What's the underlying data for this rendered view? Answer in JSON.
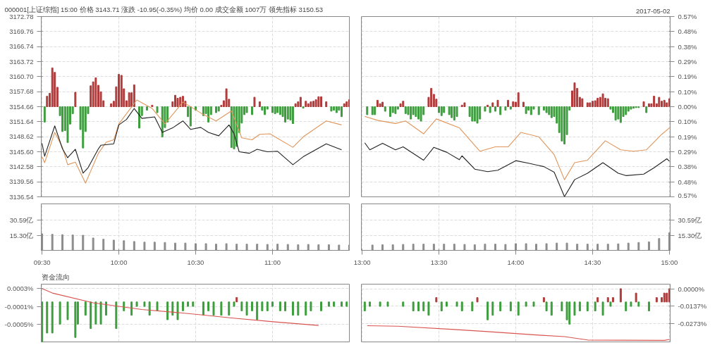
{
  "chart_data": [
    {
      "type": "line",
      "title": "000001[上证综指] 15:00 价格 3143.71 涨跌 -10.95(-0.35%) 均价 0.00 成交金额 1007万 领先指标 3150.53",
      "xlim": [
        9.495,
        11.505
      ],
      "xticks": [
        {
          "value": 9.5,
          "label": null
        },
        {
          "value": 10,
          "label": null
        },
        {
          "value": 10.5,
          "label": null
        },
        {
          "value": 11,
          "label": null
        }
      ],
      "ylim": [
        3136.54,
        3172.78
      ],
      "yticks": [
        3136.54,
        3139.56,
        3142.58,
        {
          "value": 3145.6,
          "label": "3145.60"
        },
        3148.62,
        3151.64,
        3154.66,
        3157.68,
        {
          "value": 3160.7,
          "label": "3160.70"
        },
        3163.72,
        3166.74,
        3169.76,
        3172.78
      ],
      "grid": true,
      "tick_labels": "y",
      "line_style": "solid",
      "series": [
        {
          "type": "bar",
          "color": "#b03a3a",
          "x": [
            9.533,
            9.55,
            9.567,
            9.583,
            9.6,
            9.717,
            9.817,
            9.833,
            9.85,
            9.867,
            9.883,
            9.9,
            9.95,
            9.967,
            9.983,
            10,
            10.017,
            10.033,
            10.05,
            10.067,
            10.083,
            10.1,
            10.217,
            10.35,
            10.367,
            10.383,
            10.4,
            10.417,
            10.433,
            10.667,
            10.683,
            10.7,
            10.717,
            10.883,
            10.917,
            11.15,
            11.167,
            11.183,
            11.217,
            11.233,
            11.25,
            11.267,
            11.283,
            11.3,
            11.317,
            11.35,
            11.467,
            11.483,
            11.5
          ],
          "values": [
            2.1,
            2.7,
            7.8,
            6.9,
            3.9,
            2.9,
            4.2,
            5.0,
            5.8,
            4.3,
            3.0,
            1.2,
            0.6,
            1.1,
            4.0,
            6.5,
            6.3,
            3.6,
            1.2,
            2.8,
            2.8,
            4.4,
            0.3,
            1.0,
            2.3,
            1.7,
            1.9,
            2.1,
            1.1,
            0.3,
            1.2,
            3.6,
            1.5,
            1.9,
            1.0,
            0.6,
            1.0,
            1.9,
            1.1,
            0.6,
            1.0,
            1.1,
            1.4,
            2.0,
            2.0,
            1.0,
            0.6,
            1.0,
            1.4
          ],
          "base": [
            3154.66,
            3154.66,
            3154.66,
            3154.66,
            3154.66,
            3154.66,
            3154.66,
            3154.66,
            3154.66,
            3154.66,
            3154.66,
            3154.66,
            3154.66,
            3154.66,
            3154.66,
            3154.66,
            3154.66,
            3154.66,
            3154.66,
            3154.66,
            3154.66,
            3154.66,
            3154.66,
            3154.66,
            3154.66,
            3154.66,
            3154.66,
            3154.66,
            3154.66,
            3154.66,
            3154.66,
            3154.66,
            3154.66,
            3154.66,
            3154.66,
            3154.66,
            3154.66,
            3154.66,
            3154.66,
            3154.66,
            3154.66,
            3154.66,
            3154.66,
            3154.66,
            3154.66,
            3154.66,
            3154.66,
            3154.66,
            3154.66
          ]
        },
        {
          "type": "bar",
          "color": "#3c9d3c",
          "x": [
            9.517,
            9.617,
            9.633,
            9.65,
            9.667,
            9.683,
            9.7,
            9.75,
            9.767,
            9.783,
            9.8,
            10.133,
            10.15,
            10.183,
            10.25,
            10.283,
            10.3,
            10.317,
            10.45,
            10.467,
            10.5,
            10.55,
            10.567,
            10.583,
            10.6,
            10.633,
            10.65,
            10.733,
            10.75,
            10.767,
            10.783,
            10.8,
            10.817,
            10.833,
            10.867,
            10.933,
            10.95,
            10.967,
            11,
            11.017,
            11.033,
            11.05,
            11.067,
            11.083,
            11.1,
            11.117,
            11.133,
            11.2,
            11.383,
            11.4,
            11.417,
            11.433,
            11.45
          ],
          "values": [
            -3.1,
            -1.8,
            -5.0,
            -4.8,
            -7.2,
            -3.5,
            -1.4,
            -4.6,
            -8.3,
            -5.0,
            -1.4,
            -4.3,
            -1.8,
            -0.7,
            -1.2,
            -6.1,
            -4.2,
            -3.1,
            -2.0,
            -3.9,
            -0.7,
            -1.8,
            -1.4,
            -3.1,
            -1.6,
            -1.2,
            -0.9,
            -8.2,
            -8.5,
            -8.0,
            -5.2,
            -3.3,
            -1.6,
            -1.2,
            -1.6,
            -0.7,
            -1.6,
            -0.5,
            -1.2,
            -1.4,
            -1.2,
            -1.6,
            -2.0,
            -3.1,
            -2.5,
            -2.7,
            -3.4,
            -0.3,
            -0.9,
            -0.7,
            -1.2,
            -0.7,
            -2.0
          ],
          "base": [
            3154.66,
            3154.66,
            3154.66,
            3154.66,
            3154.66,
            3154.66,
            3154.66,
            3154.66,
            3154.66,
            3154.66,
            3154.66,
            3154.66,
            3154.66,
            3154.66,
            3154.66,
            3154.66,
            3154.66,
            3154.66,
            3154.66,
            3154.66,
            3154.66,
            3154.66,
            3154.66,
            3154.66,
            3154.66,
            3154.66,
            3154.66,
            3154.66,
            3154.66,
            3154.66,
            3154.66,
            3154.66,
            3154.66,
            3154.66,
            3154.66,
            3154.66,
            3154.66,
            3154.66,
            3154.66,
            3154.66,
            3154.66,
            3154.66,
            3154.66,
            3154.66,
            3154.66,
            3154.66,
            3154.66,
            3154.66,
            3154.66,
            3154.66,
            3154.66,
            3154.66,
            3154.66
          ]
        },
        {
          "type": "line",
          "color": "#e0955a",
          "x": [
            9.5,
            9.517,
            9.583,
            9.633,
            9.667,
            9.717,
            9.783,
            9.867,
            9.917,
            9.967,
            10,
            10.117,
            10.217,
            10.3,
            10.417,
            10.533,
            10.633,
            10.733,
            10.8,
            10.867,
            10.917,
            10.983,
            11.133,
            11.2,
            11.35,
            11.45
          ],
          "values": [
            3144.6,
            3143.4,
            3149.5,
            3146.5,
            3143.0,
            3143.5,
            3139.3,
            3145.3,
            3147.5,
            3148.0,
            3151.2,
            3156.0,
            3154.3,
            3151.2,
            3155.6,
            3153.4,
            3151.8,
            3153.8,
            3148.4,
            3148.0,
            3149.1,
            3149.2,
            3146.5,
            3148.6,
            3151.8,
            3151.0
          ]
        },
        {
          "type": "line",
          "color": "#222222",
          "x": [
            9.5,
            9.517,
            9.583,
            9.633,
            9.667,
            9.717,
            9.767,
            9.8,
            9.867,
            9.883,
            9.967,
            10,
            10.05,
            10.1,
            10.15,
            10.233,
            10.283,
            10.35,
            10.417,
            10.467,
            10.533,
            10.583,
            10.65,
            10.717,
            10.75,
            10.783,
            10.85,
            10.9,
            10.967,
            11.033,
            11.133,
            11.2,
            11.35,
            11.45
          ],
          "values": [
            3147.3,
            3144.7,
            3150.8,
            3146.2,
            3144.4,
            3146.1,
            3141.3,
            3142.4,
            3146.2,
            3146.9,
            3147.2,
            3151.0,
            3152.1,
            3154.3,
            3152.3,
            3152.6,
            3149.5,
            3150.4,
            3151.8,
            3150.1,
            3150.5,
            3149.5,
            3148.8,
            3151.0,
            3149.2,
            3145.6,
            3145.3,
            3146.1,
            3145.6,
            3145.7,
            3143.0,
            3144.6,
            3147.2,
            3146.0
          ]
        }
      ]
    },
    {
      "type": "line",
      "subtitle": "2017-05-02",
      "xlim": [
        12.995,
        15.005
      ],
      "xticks": [
        {
          "value": 13,
          "label": null
        },
        {
          "value": 13.5,
          "label": null
        },
        {
          "value": 14,
          "label": null
        },
        {
          "value": 14.5,
          "label": null
        },
        {
          "value": 15,
          "label": null
        }
      ],
      "ylim": [
        -0.5744,
        0.5744
      ],
      "yticks": [
        {
          "value": -0.5744,
          "label": "0.57%"
        },
        {
          "value": -0.4787,
          "label": "0.48%"
        },
        {
          "value": -0.383,
          "label": "0.38%"
        },
        {
          "value": -0.2872,
          "label": "0.29%"
        },
        {
          "value": -0.1915,
          "label": "0.19%"
        },
        {
          "value": -0.0957,
          "label": "0.10%"
        },
        {
          "value": 0,
          "label": "0.00%"
        },
        {
          "value": 0.0957,
          "label": "0.10%"
        },
        {
          "value": 0.1915,
          "label": "0.19%"
        },
        {
          "value": 0.2872,
          "label": "0.29%"
        },
        {
          "value": 0.383,
          "label": "0.38%"
        },
        {
          "value": 0.4787,
          "label": "0.48%"
        },
        {
          "value": 0.5744,
          "label": "0.57%"
        }
      ],
      "grid": true,
      "tick_labels": "y",
      "line_style": "solid",
      "series": [
        {
          "type": "bar",
          "color": "#b03a3a",
          "x": [
            13.1,
            13.117,
            13.133,
            13.25,
            13.267,
            13.433,
            13.45,
            13.467,
            13.483,
            13.65,
            13.667,
            13.817,
            13.85,
            13.883,
            13.95,
            13.983,
            14,
            14.017,
            14.05,
            14.367,
            14.383,
            14.4,
            14.417,
            14.433,
            14.467,
            14.483,
            14.5,
            14.517,
            14.533,
            14.55,
            14.567,
            14.583,
            14.6,
            14.833,
            14.867,
            14.883,
            14.9,
            14.917,
            14.933,
            14.95,
            14.967,
            14.983,
            15
          ],
          "values": [
            0.041,
            0.019,
            0.029,
            0.019,
            0.035,
            0.06,
            0.117,
            0.079,
            0.048,
            0.01,
            0.025,
            0.01,
            0.025,
            0.041,
            0.041,
            0.032,
            0.029,
            0.089,
            0.029,
            0.101,
            0.152,
            0.117,
            0.06,
            0.051,
            0.025,
            0.025,
            0.035,
            0.038,
            0.054,
            0.06,
            0.082,
            0.054,
            0.051,
            0.032,
            0.019,
            0.019,
            0.067,
            0.019,
            0.06,
            0.035,
            0.041,
            0.025,
            0.051
          ]
        },
        {
          "type": "bar",
          "color": "#3c9d3c",
          "x": [
            13.033,
            13.067,
            13.083,
            13.15,
            13.183,
            13.2,
            13.217,
            13.233,
            13.283,
            13.3,
            13.317,
            13.333,
            13.35,
            13.367,
            13.383,
            13.4,
            13.5,
            13.517,
            13.533,
            13.567,
            13.583,
            13.6,
            13.617,
            13.7,
            13.717,
            13.733,
            13.75,
            13.767,
            13.8,
            13.833,
            13.867,
            13.9,
            13.933,
            13.967,
            14.067,
            14.083,
            14.1,
            14.117,
            14.15,
            14.183,
            14.2,
            14.217,
            14.233,
            14.25,
            14.267,
            14.283,
            14.3,
            14.317,
            14.333,
            14.35,
            14.617,
            14.633,
            14.65,
            14.667,
            14.683,
            14.7,
            14.717,
            14.733,
            14.75,
            14.767,
            14.783,
            14.8,
            14.85
          ],
          "values": [
            -0.051,
            -0.051,
            -0.051,
            -0.029,
            -0.063,
            -0.038,
            -0.044,
            -0.016,
            -0.044,
            -0.051,
            -0.079,
            -0.051,
            -0.063,
            -0.079,
            -0.092,
            -0.051,
            -0.038,
            -0.057,
            -0.038,
            -0.051,
            -0.07,
            -0.086,
            -0.063,
            -0.063,
            -0.092,
            -0.092,
            -0.105,
            -0.079,
            -0.029,
            -0.038,
            -0.029,
            -0.051,
            -0.022,
            -0.016,
            -0.044,
            -0.022,
            -0.051,
            -0.016,
            -0.051,
            -0.022,
            -0.038,
            -0.051,
            -0.07,
            -0.063,
            -0.105,
            -0.165,
            -0.219,
            -0.238,
            -0.178,
            -0.022,
            -0.016,
            -0.038,
            -0.086,
            -0.079,
            -0.101,
            -0.063,
            -0.051,
            -0.029,
            -0.016,
            -0.01,
            -0.006,
            -0.006,
            -0.038
          ]
        },
        {
          "type": "line",
          "color": "#e0955a",
          "x": [
            13.017,
            13.1,
            13.217,
            13.283,
            13.4,
            13.483,
            13.633,
            13.767,
            13.867,
            13.95,
            14.033,
            14.15,
            14.25,
            14.317,
            14.383,
            14.467,
            14.583,
            14.683,
            14.767,
            14.85,
            14.95,
            15
          ],
          "values": [
            -0.062,
            -0.087,
            -0.107,
            -0.091,
            -0.173,
            -0.078,
            -0.135,
            -0.284,
            -0.256,
            -0.256,
            -0.164,
            -0.192,
            -0.306,
            -0.465,
            -0.357,
            -0.341,
            -0.217,
            -0.275,
            -0.284,
            -0.275,
            -0.176,
            -0.135
          ]
        },
        {
          "type": "line",
          "color": "#222222",
          "x": [
            13.017,
            13.05,
            13.133,
            13.217,
            13.267,
            13.4,
            13.467,
            13.55,
            13.633,
            13.65,
            13.733,
            13.817,
            13.883,
            14,
            14.083,
            14.183,
            14.25,
            14.317,
            14.383,
            14.467,
            14.567,
            14.667,
            14.717,
            14.833,
            14.9,
            14.983,
            15
          ],
          "values": [
            -0.23,
            -0.275,
            -0.233,
            -0.275,
            -0.256,
            -0.341,
            -0.259,
            -0.29,
            -0.338,
            -0.313,
            -0.398,
            -0.414,
            -0.405,
            -0.344,
            -0.36,
            -0.382,
            -0.417,
            -0.573,
            -0.465,
            -0.424,
            -0.357,
            -0.424,
            -0.439,
            -0.43,
            -0.389,
            -0.332,
            -0.347
          ]
        }
      ]
    },
    {
      "type": "bar",
      "xlim": [
        9.495,
        11.505
      ],
      "xticks": [
        {
          "value": 9.5,
          "label": "09:30"
        },
        {
          "value": 10,
          "label": "10:00"
        },
        {
          "value": 10.5,
          "label": "10:30"
        },
        {
          "value": 11,
          "label": "11:00"
        }
      ],
      "ylim": [
        0,
        47.1
      ],
      "yticks": [
        {
          "value": 15.3,
          "label": "15.30亿"
        },
        {
          "value": 30.59,
          "label": "30.59亿"
        }
      ],
      "grid": true,
      "series": [
        {
          "color": "#8c8c8c",
          "x": [
            9.5,
            9.567,
            9.633,
            9.7,
            9.767,
            9.833,
            9.9,
            9.967,
            10.033,
            10.1,
            10.167,
            10.233,
            10.3,
            10.367,
            10.433,
            10.5,
            10.567,
            10.633,
            10.7,
            10.767,
            10.833,
            10.9,
            10.967,
            11.033,
            11.1,
            11.167,
            11.233,
            11.3,
            11.367,
            11.433,
            11.5
          ],
          "values": [
            16.8,
            16.3,
            15.9,
            15.6,
            15.3,
            12.5,
            11.3,
            10.4,
            9.8,
            9.0,
            8.3,
            8.3,
            8.0,
            7.4,
            7.4,
            6.8,
            6.8,
            6.3,
            6.8,
            6.3,
            6.3,
            6.3,
            6.0,
            6.3,
            6.0,
            5.7,
            6.0,
            5.7,
            5.7,
            5.4,
            5.4
          ]
        }
      ]
    },
    {
      "type": "bar",
      "xlim": [
        12.995,
        15.005
      ],
      "xticks": [
        {
          "value": 13,
          "label": "13:00"
        },
        {
          "value": 13.5,
          "label": "13:30"
        },
        {
          "value": 14,
          "label": "14:00"
        },
        {
          "value": 14.5,
          "label": "14:30"
        },
        {
          "value": 15,
          "label": "15:00"
        }
      ],
      "ylim": [
        0,
        47.1
      ],
      "yticks": [
        {
          "value": 15.3,
          "label": "15.30亿"
        },
        {
          "value": 30.59,
          "label": "30.59亿"
        }
      ],
      "grid": true,
      "series": [
        {
          "color": "#8c8c8c",
          "x": [
            13.067,
            13.133,
            13.2,
            13.267,
            13.333,
            13.4,
            13.467,
            13.533,
            13.6,
            13.667,
            13.733,
            13.8,
            13.867,
            13.933,
            14,
            14.067,
            14.133,
            14.2,
            14.267,
            14.333,
            14.4,
            14.467,
            14.533,
            14.6,
            14.667,
            14.733,
            14.8,
            14.867,
            14.933,
            15
          ],
          "values": [
            5.4,
            5.7,
            5.7,
            6.0,
            6.3,
            6.3,
            6.3,
            6.3,
            6.3,
            6.0,
            5.7,
            6.3,
            6.3,
            6.0,
            6.8,
            6.8,
            6.3,
            6.8,
            7.4,
            7.4,
            6.3,
            6.3,
            6.3,
            6.3,
            6.6,
            7.4,
            8.0,
            8.6,
            12.0,
            17.8
          ]
        }
      ]
    },
    {
      "type": "bar",
      "title": "资金流向",
      "xlim": [
        9.495,
        11.505
      ],
      "xticks": [
        {
          "value": 9.5,
          "label": null
        },
        {
          "value": 10,
          "label": null
        },
        {
          "value": 10.5,
          "label": null
        },
        {
          "value": 11,
          "label": null
        }
      ],
      "ylim": [
        -0.0009,
        0.0004
      ],
      "yticks": [
        {
          "value": 0.0003,
          "label": "0.0003%"
        },
        {
          "value": -0.0001,
          "label": "-0.0001%"
        },
        {
          "value": -0.0005,
          "label": "-0.0005%"
        }
      ],
      "grid": true,
      "tick_labels": "y",
      "series": [
        {
          "color": "#3c9d3c",
          "x": [
            9.5,
            9.533,
            9.567,
            9.617,
            9.667,
            9.717,
            9.733,
            9.783,
            9.817,
            9.85,
            9.883,
            9.917,
            9.983,
            10.033,
            10.083,
            10.117,
            10.167,
            10.2,
            10.25,
            10.317,
            10.35,
            10.383,
            10.417,
            10.45,
            10.483,
            10.55,
            10.583,
            10.617,
            10.667,
            10.717,
            10.75,
            10.8,
            10.833,
            10.867,
            10.9,
            10.933,
            10.967,
            11,
            11.05,
            11.083,
            11.133,
            11.167,
            11.217,
            11.25,
            11.317,
            11.367,
            11.4,
            11.45,
            11.483
          ],
          "values": [
            -0.0009,
            -0.0007,
            -0.0007,
            -0.0005,
            -0.0004,
            -0.0008,
            -0.0005,
            -0.0003,
            -0.0006,
            -0.0005,
            -0.0005,
            -0.0003,
            -0.0006,
            -0.0002,
            -0.0003,
            -0.0001,
            -0.0001,
            -0.0003,
            -0.0002,
            -0.0004,
            -0.0003,
            -0.0004,
            -0.0002,
            -0.0001,
            -0.0001,
            -0.0003,
            -0.0002,
            -0.0003,
            -0.0003,
            -0.0003,
            -0.0001,
            -0.0002,
            -0.0003,
            -0.0002,
            -0.0004,
            -0.0002,
            -0.0002,
            -0.0001,
            -0.0002,
            -0.0002,
            -0.0003,
            -0.0003,
            -0.0003,
            -0.0002,
            -0.0002,
            -0.0001,
            -0.0001,
            -0.0001,
            -0.0001
          ]
        },
        {
          "color": "#b03a3a",
          "x": [
            10.767
          ],
          "values": [
            0.0001
          ]
        },
        {
          "type": "line",
          "color": "#d9534f",
          "x": [
            9.5,
            9.567,
            9.833,
            10.15,
            10.383,
            10.533,
            10.733,
            11.017,
            11.3
          ],
          "values": [
            0.0003,
            0.0002,
            -2e-05,
            -0.00017,
            -0.00024,
            -0.00029,
            -0.00036,
            -0.00045,
            -0.00053
          ]
        }
      ]
    },
    {
      "type": "bar",
      "xlim": [
        12.995,
        15.005
      ],
      "xticks": [
        {
          "value": 13,
          "label": null
        },
        {
          "value": 13.5,
          "label": null
        },
        {
          "value": 14,
          "label": null
        },
        {
          "value": 14.5,
          "label": null
        },
        {
          "value": 15,
          "label": null
        }
      ],
      "ylim": [
        -0.0421,
        0.0039
      ],
      "yticks": [
        {
          "value": 0,
          "label": "0.0000%"
        },
        {
          "value": -0.0137,
          "label": "-0.0137%"
        },
        {
          "value": -0.0273,
          "label": "-0.0273%"
        }
      ],
      "grid": true,
      "tick_labels": "y",
      "series": [
        {
          "color": "#3c9d3c",
          "x": [
            13.017,
            13.05,
            13.117,
            13.167,
            13.267,
            13.333,
            13.367,
            13.4,
            13.433,
            13.517,
            13.55,
            13.617,
            13.65,
            13.717,
            13.817,
            13.85,
            13.9,
            13.967,
            14.017,
            14.067,
            14.117,
            14.2,
            14.233,
            14.3,
            14.333,
            14.35,
            14.383,
            14.417,
            14.467,
            14.517,
            14.567,
            14.617,
            14.717,
            14.75,
            14.8,
            14.867
          ],
          "values": [
            -0.0071,
            -0.0035,
            -0.0035,
            -0.0035,
            -0.0035,
            -0.0071,
            -0.0071,
            -0.0071,
            -0.0106,
            -0.0071,
            -0.0035,
            -0.0035,
            -0.0071,
            -0.0071,
            -0.0142,
            -0.0106,
            -0.0071,
            -0.0071,
            -0.0106,
            -0.0035,
            -0.0035,
            -0.0071,
            -0.0106,
            -0.0071,
            -0.0142,
            -0.0177,
            -0.0106,
            -0.0071,
            -0.0071,
            -0.0071,
            -0.0106,
            -0.0035,
            -0.0071,
            -0.0035,
            -0.0035,
            -0.0071
          ],
          "base": [
            -0.0103,
            -0.0103,
            -0.0103,
            -0.0103,
            -0.0103,
            -0.0103,
            -0.0103,
            -0.0103,
            -0.0103,
            -0.0103,
            -0.0103,
            -0.0103,
            -0.0103,
            -0.0103,
            -0.0103,
            -0.0103,
            -0.0103,
            -0.0103,
            -0.0103,
            -0.0103,
            -0.0103,
            -0.0103,
            -0.0103,
            -0.0103,
            -0.0103,
            -0.0103,
            -0.0103,
            -0.0103,
            -0.0103,
            -0.0103,
            -0.0103,
            -0.0103,
            -0.0103,
            -0.0103,
            -0.0103,
            -0.0103
          ]
        },
        {
          "color": "#b03a3a",
          "x": [
            13.483,
            13.75,
            14.183,
            14.533,
            14.6,
            14.633,
            14.683,
            14.783,
            14.917,
            14.95,
            14.967,
            14.983,
            15
          ],
          "values": [
            0.0035,
            0.0035,
            0.0035,
            0.0035,
            0.0035,
            0.0035,
            0.0106,
            0.0071,
            0.0035,
            0.0035,
            0.0071,
            0.0071,
            0.0106
          ],
          "base": [
            -0.0103,
            -0.0103,
            -0.0103,
            -0.0103,
            -0.0103,
            -0.0103,
            -0.0103,
            -0.0103,
            -0.0103,
            -0.0103,
            -0.0103,
            -0.0103,
            -0.0103
          ]
        },
        {
          "type": "line",
          "color": "#d9534f",
          "x": [
            13.033,
            13.233,
            13.6,
            13.817,
            14.15,
            14.317,
            14.467,
            14.967,
            15
          ],
          "values": [
            -0.0292,
            -0.0296,
            -0.0322,
            -0.0339,
            -0.0367,
            -0.0379,
            -0.0406,
            -0.0409,
            -0.0401
          ]
        }
      ]
    }
  ]
}
